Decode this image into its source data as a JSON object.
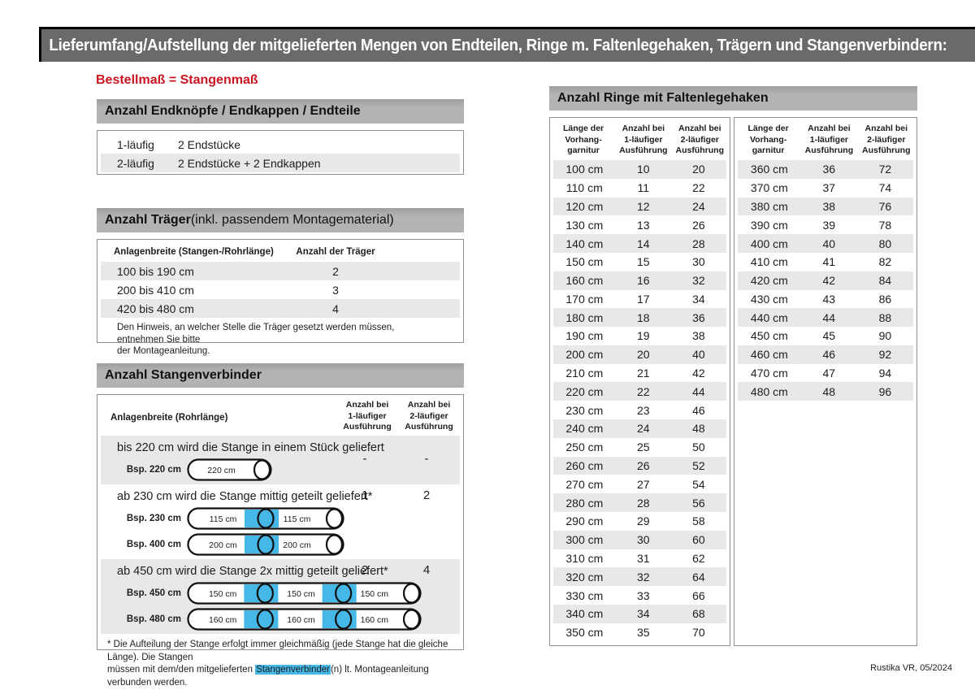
{
  "title": "Lieferumfang/Aufstellung der mitgelieferten Mengen von Endteilen, Ringe m. Faltenlegehaken, Trägern und Stangenverbindern:",
  "subtitle": "Bestellmaß = Stangenmaß",
  "footer": "Rustika VR, 05/2024",
  "colors": {
    "accent_red": "#cc1420",
    "highlight_blue": "#45b8e8",
    "topbar_gray": "#6a6a6a",
    "section_bar_gray": "#b2b2b2",
    "row_stripe_gray": "#e8e8e8"
  },
  "endteile": {
    "header": "Anzahl Endknöpfe / Endkappen / Endteile",
    "rows": [
      {
        "label": "1-läufig",
        "value": "2 Endstücke"
      },
      {
        "label": "2-läufig",
        "value": "2 Endstücke + 2 Endkappen"
      }
    ]
  },
  "traeger": {
    "header_bold": "Anzahl Träger",
    "header_rest": " (inkl. passendem Montagematerial)",
    "col1": "Anlagenbreite (Stangen-/Rohrlänge)",
    "col2": "Anzahl der Träger",
    "rows": [
      {
        "range": "100 bis 190 cm",
        "count": "2"
      },
      {
        "range": "200 bis 410 cm",
        "count": "3"
      },
      {
        "range": "420 bis 480 cm",
        "count": "4"
      }
    ],
    "note": "Den Hinweis, an welcher Stelle die Träger gesetzt werden müssen, entnehmen Sie bitte\nder Montageanleitung."
  },
  "verbinder": {
    "header": "Anzahl Stangenverbinder",
    "col1": "Anlagenbreite (Rohrlänge)",
    "col2": "Anzahl bei\n1-läufiger\nAusführung",
    "col3": "Anzahl bei\n2-läufiger\nAusführung",
    "blocks": [
      {
        "text": "bis 220 cm wird die Stange in einem Stück geliefert",
        "v1": "-",
        "v2": "-",
        "rods": [
          {
            "label": "Bsp. 220 cm",
            "segments": [
              "220 cm"
            ]
          }
        ]
      },
      {
        "text": "ab 230 cm wird die Stange mittig geteilt geliefert*",
        "v1": "1",
        "v2": "2",
        "rods": [
          {
            "label": "Bsp. 230 cm",
            "segments": [
              "115 cm",
              "115 cm"
            ]
          },
          {
            "label": "Bsp. 400 cm",
            "segments": [
              "200 cm",
              "200 cm"
            ]
          }
        ]
      },
      {
        "text": "ab 450 cm wird die Stange 2x mittig geteilt geliefert*",
        "v1": "2",
        "v2": "4",
        "rods": [
          {
            "label": "Bsp. 450 cm",
            "segments": [
              "150 cm",
              "150 cm",
              "150 cm"
            ]
          },
          {
            "label": "Bsp. 480 cm",
            "segments": [
              "160 cm",
              "160 cm",
              "160 cm"
            ]
          }
        ]
      }
    ],
    "footnote": {
      "pre": "* Die Aufteilung der Stange erfolgt immer gleichmäßig (jede Stange hat die gleiche Länge). Die Stangen\nmüssen mit dem/den mitgelieferten ",
      "highlight": "Stangenverbinder",
      "post": "(n) lt. Montageanleitung verbunden werden."
    }
  },
  "rings": {
    "header": "Anzahl Ringe mit Faltenlegehaken",
    "col1": "Länge der\nVorhang-\ngarnitur",
    "col2": "Anzahl bei\n1-läufiger\nAusführung",
    "col3": "Anzahl bei\n2-läufiger\nAusführung",
    "table1": {
      "rows": [
        [
          "100 cm",
          "10",
          "20"
        ],
        [
          "110 cm",
          "11",
          "22"
        ],
        [
          "120 cm",
          "12",
          "24"
        ],
        [
          "130 cm",
          "13",
          "26"
        ],
        [
          "140 cm",
          "14",
          "28"
        ],
        [
          "150 cm",
          "15",
          "30"
        ],
        [
          "160 cm",
          "16",
          "32"
        ],
        [
          "170 cm",
          "17",
          "34"
        ],
        [
          "180 cm",
          "18",
          "36"
        ],
        [
          "190 cm",
          "19",
          "38"
        ],
        [
          "200 cm",
          "20",
          "40"
        ],
        [
          "210 cm",
          "21",
          "42"
        ],
        [
          "220 cm",
          "22",
          "44"
        ],
        [
          "230 cm",
          "23",
          "46"
        ],
        [
          "240 cm",
          "24",
          "48"
        ],
        [
          "250 cm",
          "25",
          "50"
        ],
        [
          "260 cm",
          "26",
          "52"
        ],
        [
          "270 cm",
          "27",
          "54"
        ],
        [
          "280 cm",
          "28",
          "56"
        ],
        [
          "290 cm",
          "29",
          "58"
        ],
        [
          "300 cm",
          "30",
          "60"
        ],
        [
          "310 cm",
          "31",
          "62"
        ],
        [
          "320 cm",
          "32",
          "64"
        ],
        [
          "330 cm",
          "33",
          "66"
        ],
        [
          "340 cm",
          "34",
          "68"
        ],
        [
          "350 cm",
          "35",
          "70"
        ]
      ]
    },
    "table2": {
      "rows": [
        [
          "360 cm",
          "36",
          "72"
        ],
        [
          "370 cm",
          "37",
          "74"
        ],
        [
          "380 cm",
          "38",
          "76"
        ],
        [
          "390 cm",
          "39",
          "78"
        ],
        [
          "400 cm",
          "40",
          "80"
        ],
        [
          "410 cm",
          "41",
          "82"
        ],
        [
          "420 cm",
          "42",
          "84"
        ],
        [
          "430 cm",
          "43",
          "86"
        ],
        [
          "440 cm",
          "44",
          "88"
        ],
        [
          "450 cm",
          "45",
          "90"
        ],
        [
          "460 cm",
          "46",
          "92"
        ],
        [
          "470 cm",
          "47",
          "94"
        ],
        [
          "480 cm",
          "48",
          "96"
        ]
      ]
    }
  }
}
